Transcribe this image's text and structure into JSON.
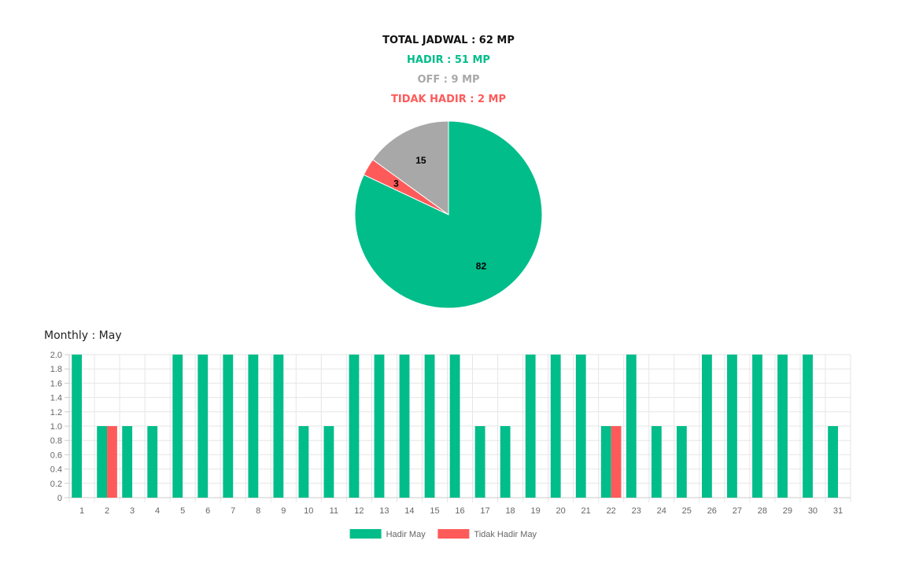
{
  "summary": {
    "total": "TOTAL JADWAL : 62 MP",
    "hadir": "HADIR : 51 MP",
    "off": "OFF : 9 MP",
    "tidak_hadir": "TIDAK HADIR : 2 MP"
  },
  "colors": {
    "hadir": "#00bd8a",
    "off": "#a8a8a8",
    "tidak_hadir": "#ff5a5a"
  },
  "chart_data": [
    {
      "type": "pie",
      "title": "",
      "slices": [
        {
          "label": "HADIR",
          "value": 82,
          "color": "#00bd8a"
        },
        {
          "label": "TIDAK HADIR",
          "value": 3,
          "color": "#ff5a5a"
        },
        {
          "label": "OFF",
          "value": 15,
          "color": "#a8a8a8"
        }
      ]
    },
    {
      "type": "bar",
      "title": "Monthly : May",
      "categories": [
        "1",
        "2",
        "3",
        "4",
        "5",
        "6",
        "7",
        "8",
        "9",
        "10",
        "11",
        "12",
        "13",
        "14",
        "15",
        "16",
        "17",
        "18",
        "19",
        "20",
        "21",
        "22",
        "23",
        "24",
        "25",
        "26",
        "27",
        "28",
        "29",
        "30",
        "31"
      ],
      "series": [
        {
          "name": "Hadir May",
          "color": "#00bd8a",
          "values": [
            2,
            1,
            1,
            1,
            2,
            2,
            2,
            2,
            2,
            1,
            1,
            2,
            2,
            2,
            2,
            2,
            1,
            1,
            2,
            2,
            2,
            1,
            2,
            1,
            1,
            2,
            2,
            2,
            2,
            2,
            1
          ]
        },
        {
          "name": "Tidak Hadir May",
          "color": "#ff5a5a",
          "values": [
            0,
            1,
            0,
            0,
            0,
            0,
            0,
            0,
            0,
            0,
            0,
            0,
            0,
            0,
            0,
            0,
            0,
            0,
            0,
            0,
            0,
            1,
            0,
            0,
            0,
            0,
            0,
            0,
            0,
            0,
            0
          ]
        }
      ],
      "ylim": [
        0,
        2.0
      ],
      "yticks": [
        "0",
        "0.2",
        "0.4",
        "0.6",
        "0.8",
        "1.0",
        "1.2",
        "1.4",
        "1.6",
        "1.8",
        "2.0"
      ],
      "grid": true,
      "legend_position": "bottom"
    }
  ]
}
